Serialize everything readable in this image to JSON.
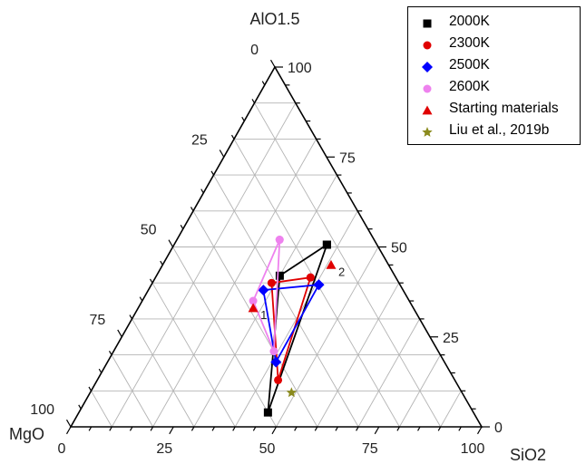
{
  "chart_data": {
    "type": "scatter",
    "subtype": "ternary",
    "axes": {
      "top": {
        "label": "AlO1.5",
        "ticks": [
          0,
          25,
          50,
          75,
          100
        ]
      },
      "right": {
        "label": "SiO2",
        "ticks": [
          0,
          25,
          50,
          75,
          100
        ]
      },
      "left": {
        "label": "MgO",
        "ticks": [
          0,
          25,
          50,
          75,
          100
        ]
      }
    },
    "grid": true,
    "legend": "top-right",
    "series": [
      {
        "name": "2000K",
        "color": "#000000",
        "marker": "square",
        "connected": true,
        "points": [
          {
            "AlO1.5": 81,
            "SiO2": 59.5,
            "MgO": 19.5
          },
          {
            "AlO1.5": 4,
            "SiO2": 46,
            "MgO": 50
          },
          {
            "AlO1.5": 42,
            "SiO2": 30,
            "MgO": 28
          },
          {
            "AlO1.5": 81,
            "SiO2": 59.5,
            "MgO": 19.5
          }
        ]
      },
      {
        "name": "2300K",
        "color": "#e00000",
        "marker": "circle",
        "connected": true,
        "points": [
          {
            "AlO1.5": 71,
            "SiO2": 64.5,
            "MgO": 35.5
          },
          {
            "AlO1.5": 13,
            "SiO2": 44,
            "MgO": 43
          },
          {
            "AlO1.5": 40,
            "SiO2": 29,
            "MgO": 31
          },
          {
            "AlO1.5": 71,
            "SiO2": 64.5,
            "MgO": 35.5
          }
        ]
      },
      {
        "name": "2500K",
        "color": "#0000ff",
        "marker": "diamond",
        "connected": true,
        "points": [
          {
            "AlO1.5": 63,
            "SiO2": 65,
            "MgO": 31.5
          },
          {
            "AlO1.5": 18,
            "SiO2": 41,
            "MgO": 41
          },
          {
            "AlO1.5": 38,
            "SiO2": 28,
            "MgO": 34
          },
          {
            "AlO1.5": 63,
            "SiO2": 65,
            "MgO": 31.5
          }
        ]
      },
      {
        "name": "2600K",
        "color": "#ee82ee",
        "marker": "circle",
        "connected": true,
        "points": [
          {
            "AlO1.5": 52,
            "SiO2": 25,
            "MgO": 23
          },
          {
            "AlO1.5": 21,
            "SiO2": 39,
            "MgO": 40
          },
          {
            "AlO1.5": 35,
            "SiO2": 27,
            "MgO": 38
          },
          {
            "AlO1.5": 52,
            "SiO2": 25,
            "MgO": 23
          }
        ]
      },
      {
        "name": "Starting materials",
        "color": "#e00000",
        "marker": "triangle",
        "connected": false,
        "points": [
          {
            "AlO1.5": 45,
            "SiO2": 41,
            "MgO": 14,
            "label": "2"
          },
          {
            "AlO1.5": 33,
            "SiO2": 28,
            "MgO": 39,
            "label": "1"
          }
        ]
      },
      {
        "name": "Liu et al., 2019b",
        "color": "#8b8b1e",
        "marker": "star",
        "connected": false,
        "points": [
          {
            "AlO1.5": 9.5,
            "SiO2": 49,
            "MgO": 41.5
          }
        ]
      }
    ]
  }
}
